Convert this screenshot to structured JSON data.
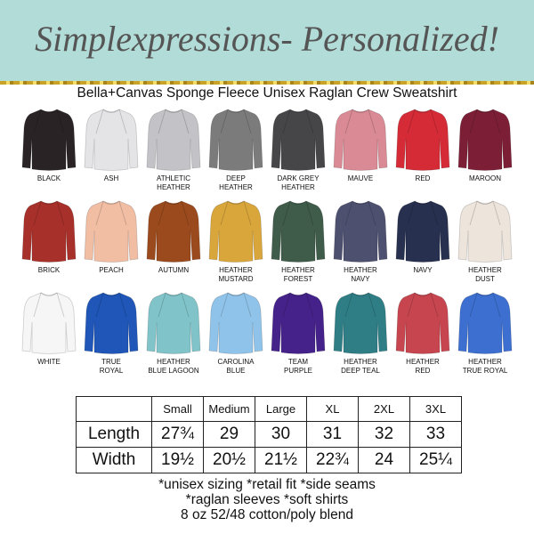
{
  "banner": {
    "title": "Simplexpressions- Personalized!",
    "background": "#b1dcd7"
  },
  "subtitle": "Bella+Canvas Sponge Fleece Unisex Raglan Crew Sweatshirt",
  "colors": [
    {
      "label": "BLACK",
      "hex": "#2a2326"
    },
    {
      "label": "ASH",
      "hex": "#e4e4e6"
    },
    {
      "label": "ATHLETIC\nHEATHER",
      "hex": "#c3c3c7"
    },
    {
      "label": "DEEP\nHEATHER",
      "hex": "#7b7b7b"
    },
    {
      "label": "DARK GREY\nHEATHER",
      "hex": "#464648"
    },
    {
      "label": "MAUVE",
      "hex": "#d98a94"
    },
    {
      "label": "RED",
      "hex": "#d42b37"
    },
    {
      "label": "MAROON",
      "hex": "#7c1f36"
    },
    {
      "label": "BRICK",
      "hex": "#a8302a"
    },
    {
      "label": "PEACH",
      "hex": "#f1bea4"
    },
    {
      "label": "AUTUMN",
      "hex": "#9b4a1d"
    },
    {
      "label": "HEATHER\nMUSTARD",
      "hex": "#d9a63b"
    },
    {
      "label": "HEATHER\nFOREST",
      "hex": "#3f5b49"
    },
    {
      "label": "HEATHER\nNAVY",
      "hex": "#4e5070"
    },
    {
      "label": "NAVY",
      "hex": "#27304f"
    },
    {
      "label": "HEATHER\nDUST",
      "hex": "#ede4db"
    },
    {
      "label": "WHITE",
      "hex": "#f6f6f6"
    },
    {
      "label": "TRUE\nROYAL",
      "hex": "#1f56b7"
    },
    {
      "label": "HEATHER\nBLUE LAGOON",
      "hex": "#80c4c9"
    },
    {
      "label": "CAROLINA\nBLUE",
      "hex": "#90c3e9"
    },
    {
      "label": "TEAM\nPURPLE",
      "hex": "#45228a"
    },
    {
      "label": "HEATHER\nDEEP TEAL",
      "hex": "#2f7e86"
    },
    {
      "label": "HEATHER\nRED",
      "hex": "#c6454f"
    },
    {
      "label": "HEATHER\nTRUE ROYAL",
      "hex": "#3c6fd0"
    }
  ],
  "size_chart": {
    "headers": [
      "",
      "Small",
      "Medium",
      "Large",
      "XL",
      "2XL",
      "3XL"
    ],
    "rows": [
      {
        "label": "Length",
        "values": [
          "27¾",
          "29",
          "30",
          "31",
          "32",
          "33"
        ]
      },
      {
        "label": "Width",
        "values": [
          "19½",
          "20½",
          "21½",
          "22¾",
          "24",
          "25¼"
        ]
      }
    ]
  },
  "notes": [
    "*unisex sizing *retail fit *side seams",
    "*raglan sleeves *soft shirts",
    "8 oz 52/48 cotton/poly blend"
  ]
}
